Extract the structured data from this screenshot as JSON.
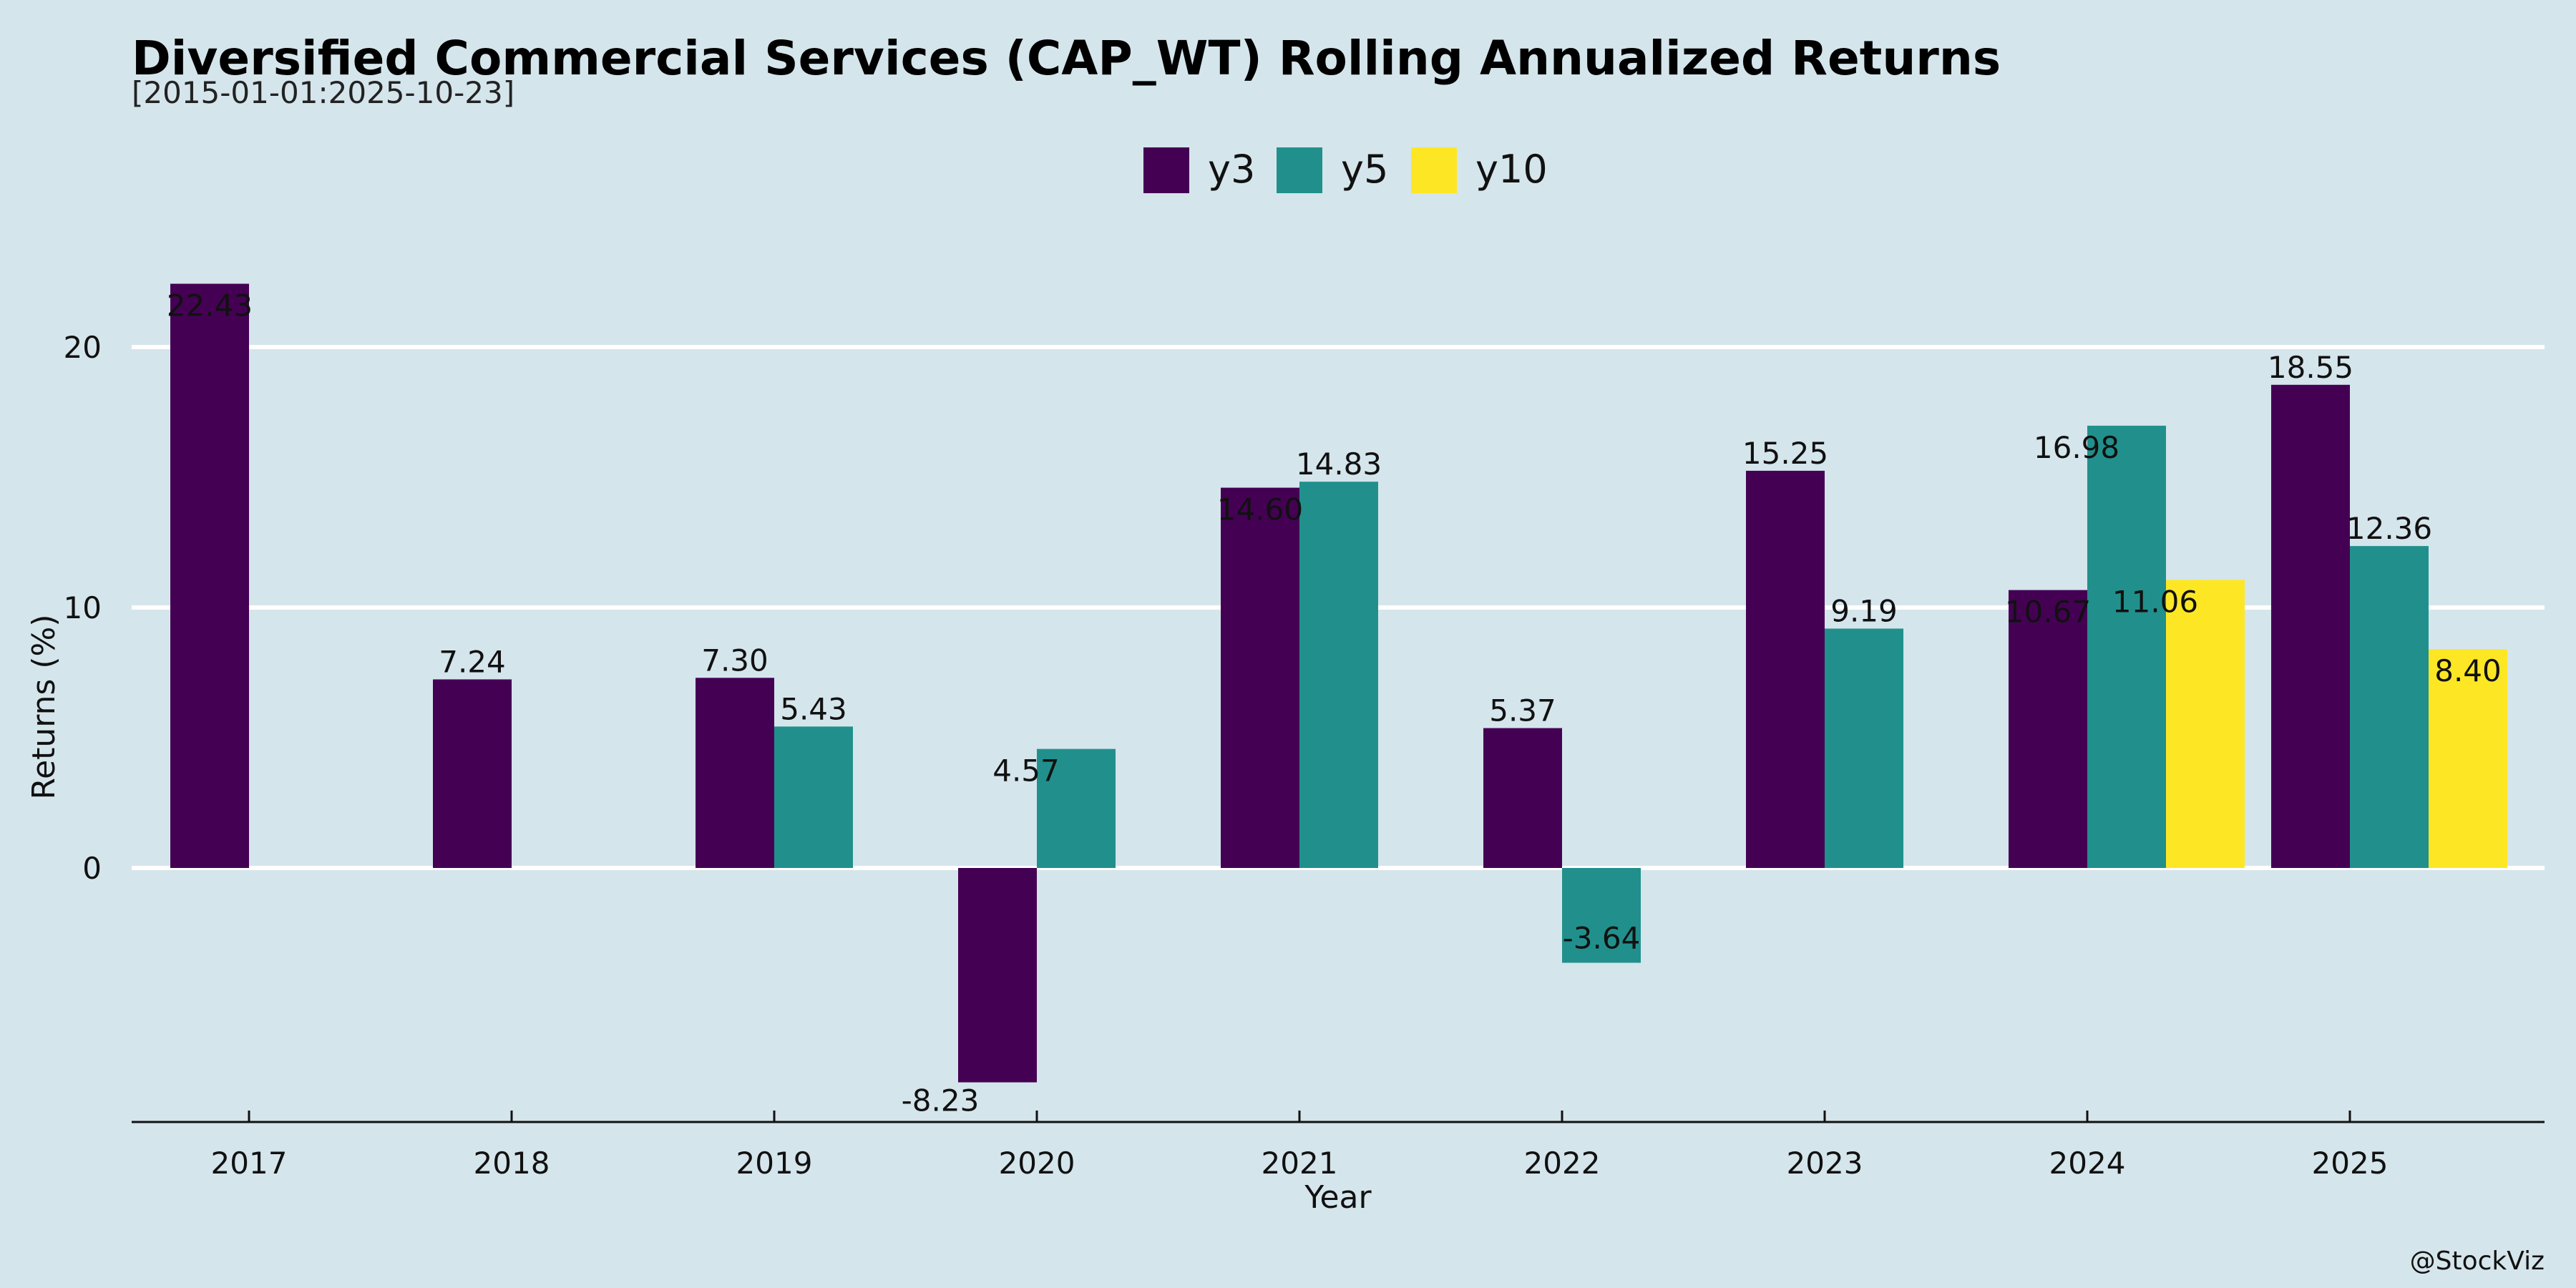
{
  "chart_data": {
    "type": "bar",
    "title": "Diversified Commercial Services (CAP_WT) Rolling Annualized Returns",
    "subtitle": "[2015-01-01:2025-10-23]",
    "xlabel": "Year",
    "ylabel": "Returns (%)",
    "credit": "@StockViz",
    "categories": [
      "2017",
      "2018",
      "2019",
      "2020",
      "2021",
      "2022",
      "2023",
      "2024",
      "2025"
    ],
    "series": [
      {
        "name": "y3",
        "color": "#440154",
        "values": [
          22.43,
          7.24,
          7.3,
          -8.23,
          14.6,
          5.37,
          15.25,
          10.67,
          18.55
        ]
      },
      {
        "name": "y5",
        "color": "#21908c",
        "values": [
          null,
          null,
          5.43,
          4.57,
          14.83,
          -3.64,
          9.19,
          16.98,
          12.36
        ]
      },
      {
        "name": "y10",
        "color": "#fde725",
        "values": [
          null,
          null,
          null,
          null,
          null,
          null,
          null,
          11.06,
          8.4
        ]
      }
    ],
    "data_labels": [
      [
        "22.43",
        "7.24",
        "7.30",
        "-8.23",
        "14.60",
        "5.37",
        "15.25",
        "10.67",
        "18.55"
      ],
      [
        null,
        null,
        "5.43",
        "4.57",
        "14.83",
        "-3.64",
        "9.19",
        "16.98",
        "12.36"
      ],
      [
        null,
        null,
        null,
        null,
        null,
        null,
        null,
        "11.06",
        "8.40"
      ]
    ],
    "yticks": [
      0,
      10,
      20
    ],
    "ylim": [
      -9.8,
      25
    ],
    "legend": "top-center",
    "grid": "horizontal"
  }
}
